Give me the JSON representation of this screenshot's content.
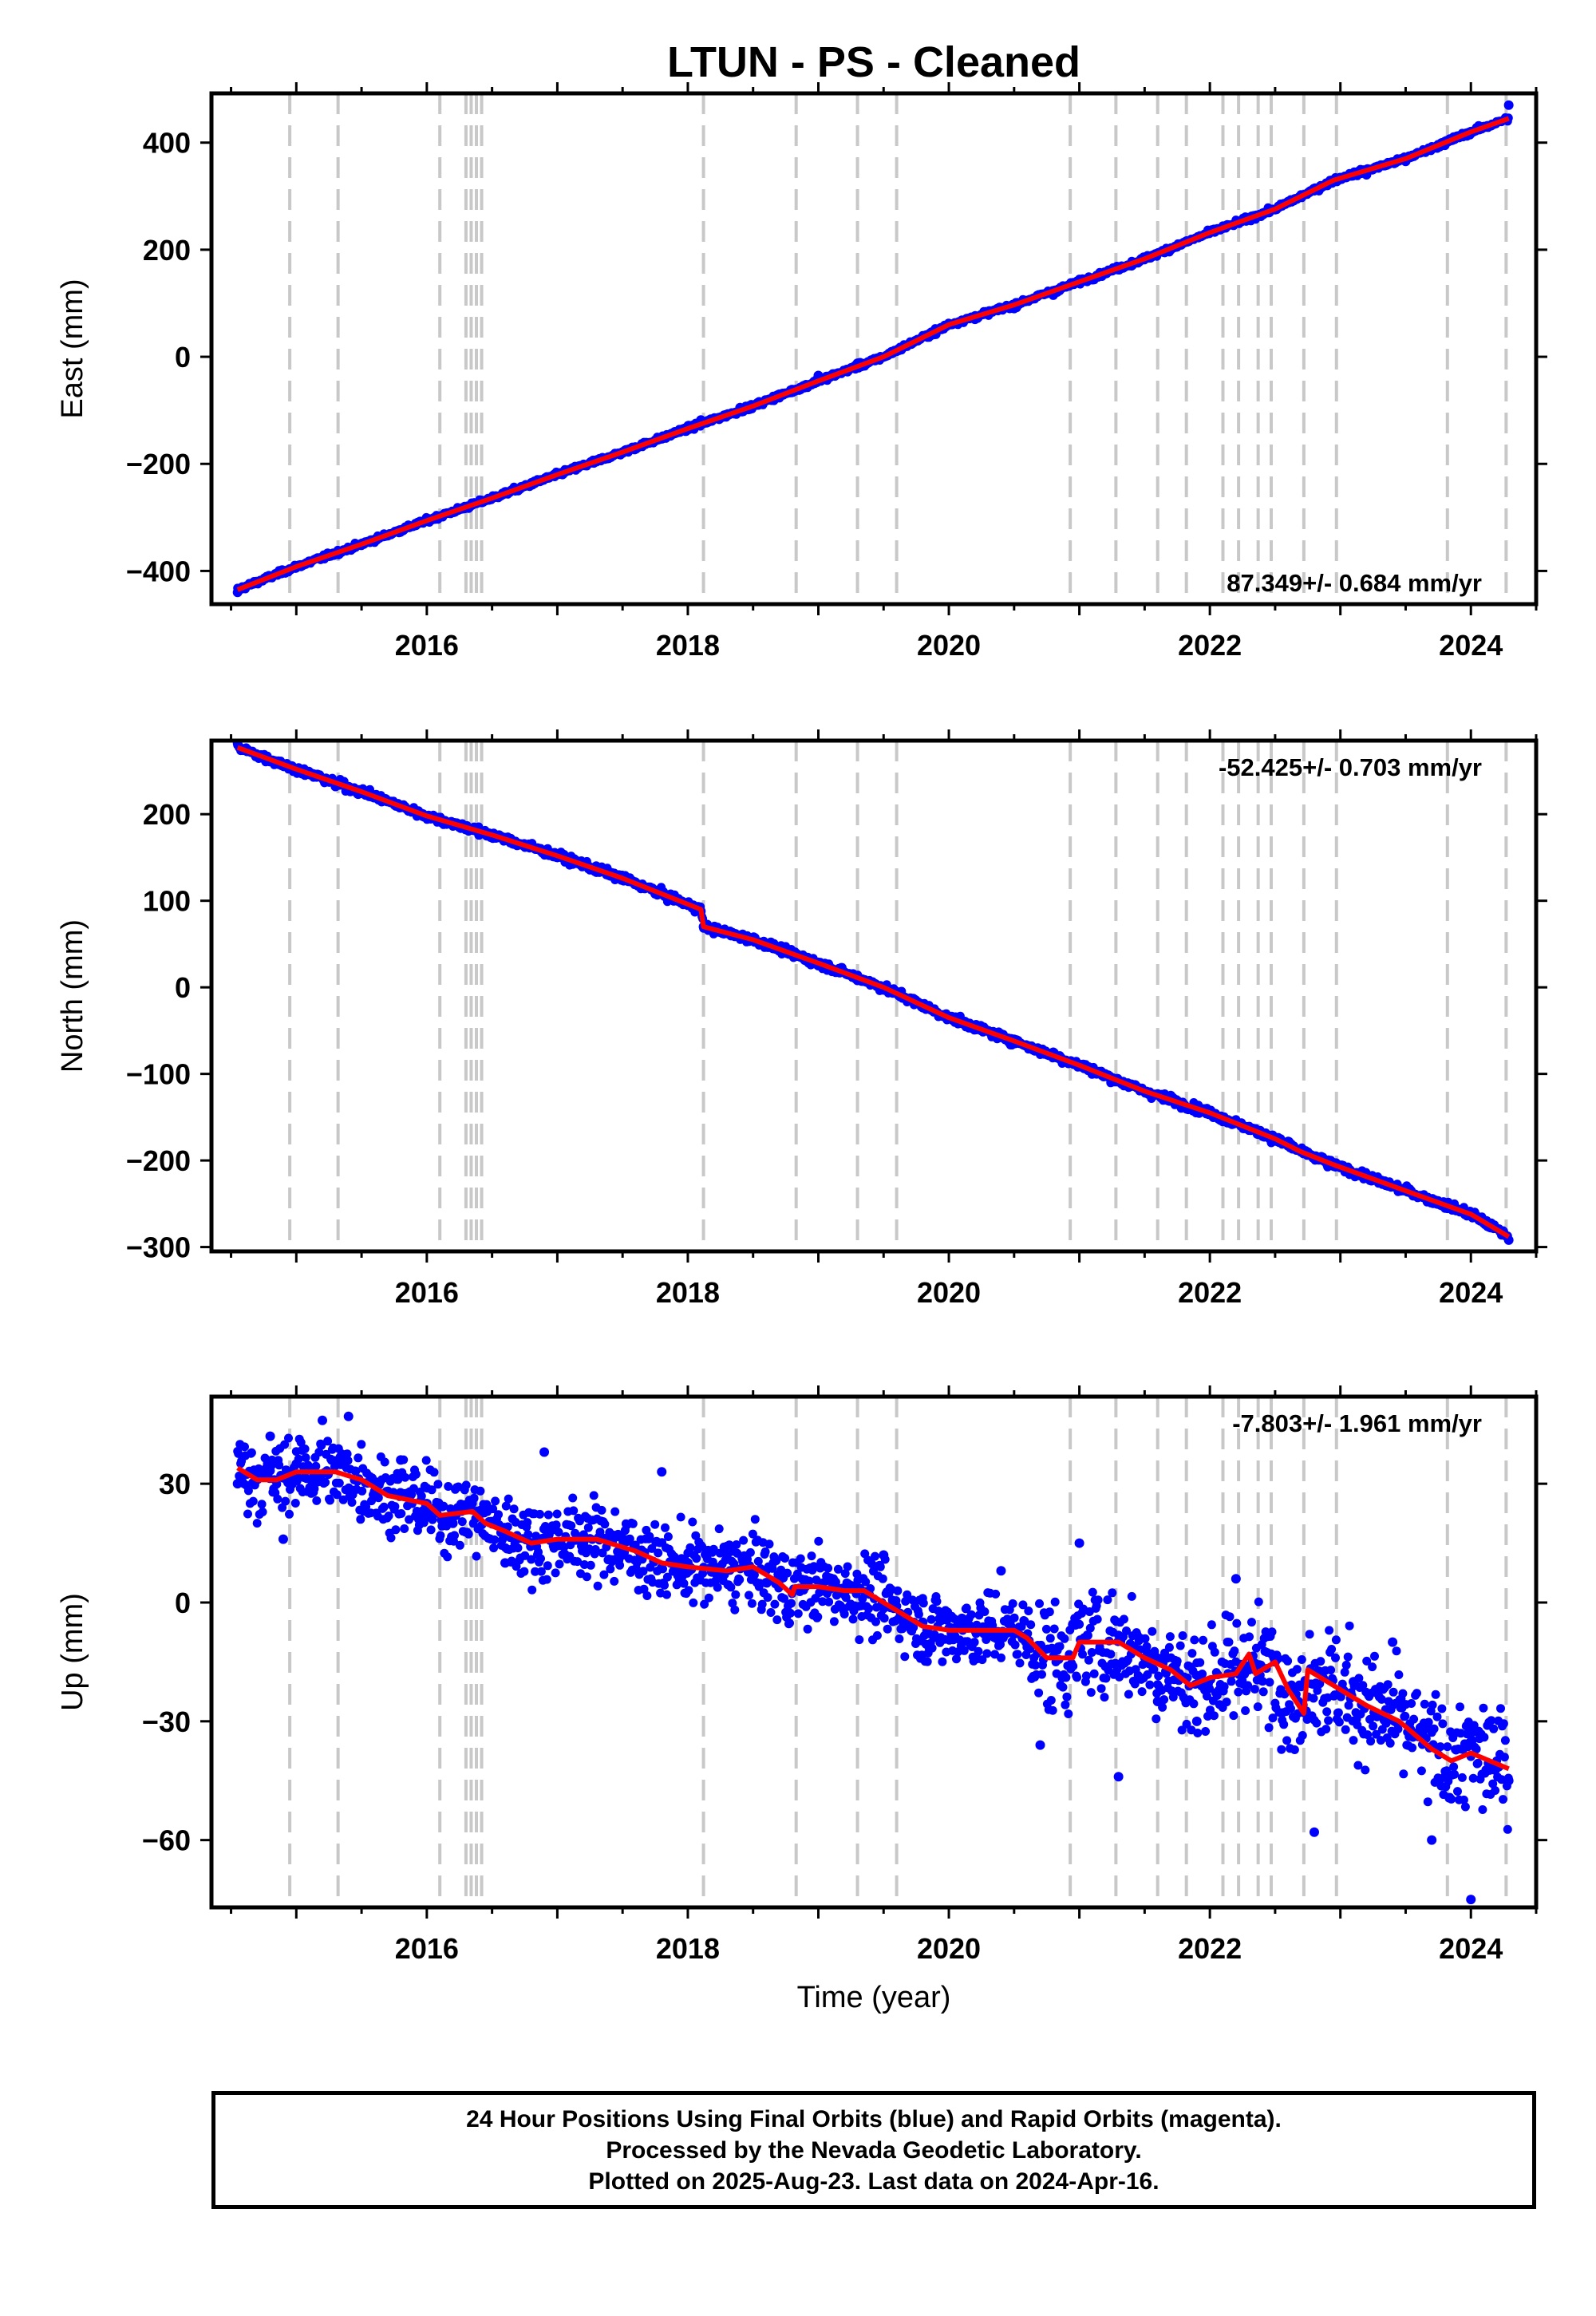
{
  "title": "LTUN  - PS - Cleaned",
  "xlabel": "Time (year)",
  "footer": {
    "line1": "24 Hour Positions Using Final Orbits (blue) and Rapid Orbits (magenta).",
    "line2": "Processed by the Nevada Geodetic Laboratory.",
    "line3": "Plotted on 2025-Aug-23. Last data on 2024-Apr-16."
  },
  "colors": {
    "data": "#0000ff",
    "model": "#ff0000",
    "event_lines": "#c8c8c8",
    "axes": "#000000"
  },
  "chart_data": [
    {
      "type": "scatter",
      "ylabel": "East (mm)",
      "rate_label": "87.349+/- 0.684 mm/yr",
      "rate_label_position": "bottom-right",
      "xlim": [
        2014.35,
        2024.5
      ],
      "ylim": [
        -462,
        492
      ],
      "x_ticks": [
        2016,
        2018,
        2020,
        2022,
        2024
      ],
      "x_tick_labels": [
        "2016",
        "2018",
        "2020",
        "2022",
        "2024"
      ],
      "y_ticks": [
        -400,
        -200,
        0,
        200,
        400
      ],
      "y_tick_labels": [
        "−400",
        "−200",
        "0",
        "200",
        "400"
      ],
      "series": [
        {
          "kind": "points",
          "x": [
            2014.55,
            2014.8,
            2015.0,
            2015.3,
            2015.6,
            2015.9,
            2016.2,
            2016.4,
            2016.7,
            2017.0,
            2017.3,
            2017.6,
            2017.9,
            2018.1,
            2018.4,
            2018.7,
            2019.0,
            2019.3,
            2019.6,
            2019.9,
            2020.2,
            2020.5,
            2020.8,
            2021.1,
            2021.4,
            2021.7,
            2022.0,
            2022.3,
            2022.6,
            2022.9,
            2023.2,
            2023.5,
            2023.8,
            2024.1,
            2024.29
          ],
          "y": [
            -440,
            -410,
            -392,
            -369,
            -345,
            -315,
            -290,
            -272,
            -250,
            -220,
            -196,
            -172,
            -140,
            -118,
            -95,
            -70,
            -35,
            -12,
            12,
            42,
            70,
            90,
            115,
            145,
            170,
            200,
            235,
            260,
            290,
            320,
            340,
            365,
            395,
            430,
            470
          ]
        },
        {
          "kind": "line",
          "x": [
            2014.55,
            2015.0,
            2015.5,
            2016.0,
            2016.5,
            2017.0,
            2017.5,
            2018.0,
            2018.5,
            2019.0,
            2019.5,
            2020.0,
            2020.5,
            2021.0,
            2021.5,
            2022.0,
            2022.5,
            2022.7,
            2022.95,
            2023.5,
            2024.0,
            2024.29
          ],
          "y": [
            -435,
            -392,
            -350,
            -306,
            -264,
            -220,
            -178,
            -134,
            -92,
            -45,
            0,
            60,
            97,
            140,
            183,
            232,
            276,
            300,
            330,
            370,
            420,
            445
          ]
        }
      ]
    },
    {
      "type": "scatter",
      "ylabel": "North (mm)",
      "rate_label": "-52.425+/- 0.703 mm/yr",
      "rate_label_position": "top-right",
      "xlim": [
        2014.35,
        2024.5
      ],
      "ylim": [
        -305,
        285
      ],
      "x_ticks": [
        2016,
        2018,
        2020,
        2022,
        2024
      ],
      "x_tick_labels": [
        "2016",
        "2018",
        "2020",
        "2022",
        "2024"
      ],
      "y_ticks": [
        -300,
        -200,
        -100,
        0,
        100,
        200
      ],
      "y_tick_labels": [
        "−300",
        "−200",
        "−100",
        "0",
        "100",
        "200"
      ],
      "series": [
        {
          "kind": "points",
          "x": [
            2014.55,
            2014.8,
            2015.0,
            2015.3,
            2015.6,
            2015.9,
            2016.2,
            2016.4,
            2016.7,
            2017.0,
            2017.3,
            2017.6,
            2017.9,
            2018.1,
            2018.12,
            2018.4,
            2018.7,
            2019.0,
            2019.3,
            2019.6,
            2019.9,
            2020.2,
            2020.5,
            2020.8,
            2021.1,
            2021.4,
            2021.7,
            2022.0,
            2022.3,
            2022.6,
            2022.9,
            2023.2,
            2023.5,
            2023.8,
            2024.1,
            2024.29
          ],
          "y": [
            282,
            262,
            250,
            232,
            222,
            203,
            188,
            176,
            166,
            150,
            133,
            120,
            102,
            88,
            70,
            58,
            45,
            25,
            8,
            -5,
            -28,
            -45,
            -60,
            -75,
            -100,
            -112,
            -125,
            -145,
            -165,
            -178,
            -205,
            -220,
            -235,
            -250,
            -270,
            -292
          ]
        },
        {
          "kind": "line",
          "x": [
            2014.55,
            2015.0,
            2015.5,
            2016.0,
            2016.5,
            2017.0,
            2017.5,
            2018.1,
            2018.12,
            2018.5,
            2019.0,
            2019.5,
            2020.0,
            2020.5,
            2021.0,
            2021.5,
            2022.0,
            2022.5,
            2022.7,
            2022.95,
            2023.5,
            2024.0,
            2024.29
          ],
          "y": [
            277,
            252,
            226,
            198,
            176,
            152,
            126,
            90,
            70,
            55,
            28,
            0,
            -35,
            -62,
            -90,
            -120,
            -145,
            -175,
            -190,
            -205,
            -235,
            -262,
            -288
          ]
        }
      ]
    },
    {
      "type": "scatter",
      "ylabel": "Up (mm)",
      "rate_label": "-7.803+/- 1.961 mm/yr",
      "rate_label_position": "top-right",
      "xlim": [
        2014.35,
        2024.5
      ],
      "ylim": [
        -77,
        52
      ],
      "x_ticks": [
        2016,
        2018,
        2020,
        2022,
        2024
      ],
      "x_tick_labels": [
        "2016",
        "2018",
        "2020",
        "2022",
        "2024"
      ],
      "y_ticks": [
        -60,
        -30,
        0,
        30
      ],
      "y_tick_labels": [
        "−60",
        "−30",
        "0",
        "30"
      ],
      "series": [
        {
          "kind": "points",
          "x": [
            2014.55,
            2014.8,
            2014.9,
            2015.0,
            2015.2,
            2015.4,
            2015.6,
            2015.8,
            2016.0,
            2016.2,
            2016.4,
            2016.6,
            2016.9,
            2017.2,
            2017.5,
            2017.8,
            2018.0,
            2018.3,
            2018.6,
            2018.9,
            2019.2,
            2019.5,
            2019.8,
            2020.1,
            2020.4,
            2020.7,
            2021.0,
            2021.3,
            2021.6,
            2021.9,
            2022.2,
            2022.5,
            2022.8,
            2023.1,
            2023.4,
            2023.7,
            2024.0,
            2024.29
          ],
          "y": [
            30,
            42,
            16,
            35,
            46,
            47,
            28,
            36,
            25,
            20,
            22,
            10,
            38,
            15,
            12,
            33,
            10,
            12,
            5,
            4,
            2,
            12,
            -5,
            -4,
            8,
            -36,
            15,
            -44,
            -25,
            -30,
            6,
            -15,
            -58,
            -20,
            -10,
            -60,
            -75,
            -45
          ]
        },
        {
          "kind": "line",
          "x": [
            2014.55,
            2014.7,
            2014.85,
            2015.0,
            2015.3,
            2015.5,
            2015.7,
            2016.0,
            2016.1,
            2016.35,
            2016.45,
            2016.6,
            2016.8,
            2017.0,
            2017.3,
            2017.6,
            2017.8,
            2018.0,
            2018.3,
            2018.5,
            2018.7,
            2018.8,
            2018.82,
            2019.0,
            2019.2,
            2019.35,
            2019.6,
            2019.8,
            2020.0,
            2020.3,
            2020.5,
            2020.6,
            2020.75,
            2020.95,
            2021.0,
            2021.3,
            2021.5,
            2021.7,
            2021.85,
            2022.0,
            2022.2,
            2022.3,
            2022.35,
            2022.5,
            2022.6,
            2022.72,
            2022.75,
            2022.95,
            2023.2,
            2023.45,
            2023.7,
            2023.85,
            2024.0,
            2024.29
          ],
          "y": [
            34,
            31,
            31,
            33,
            33,
            31,
            27,
            25,
            22,
            23,
            20,
            18,
            15,
            16,
            16,
            13,
            10,
            9,
            8,
            9,
            5,
            2,
            4,
            4,
            3,
            3,
            -2,
            -6,
            -7,
            -7,
            -7,
            -9,
            -14,
            -14,
            -10,
            -10,
            -14,
            -17,
            -21,
            -19,
            -18,
            -13,
            -18,
            -15,
            -22,
            -28,
            -17,
            -21,
            -26,
            -30,
            -37,
            -40,
            -38,
            -42
          ]
        }
      ]
    }
  ],
  "event_lines_x": [
    2014.95,
    2015.32,
    2016.1,
    2016.3,
    2016.34,
    2016.38,
    2016.42,
    2018.12,
    2018.83,
    2019.3,
    2019.6,
    2020.93,
    2021.28,
    2021.6,
    2021.82,
    2022.1,
    2022.22,
    2022.37,
    2022.47,
    2022.72,
    2022.97,
    2023.82,
    2024.27
  ]
}
